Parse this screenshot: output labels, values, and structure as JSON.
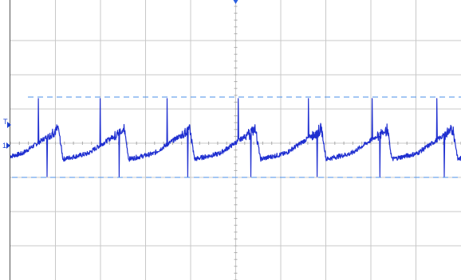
{
  "scope": {
    "channel_marker_label": "1",
    "trigger_level_label": "T",
    "grid": {
      "vertical_divisions": 10,
      "horizontal_divisions": 8
    },
    "colors": {
      "background": "#ffffff",
      "grid": "#c8c8c8",
      "trace": "#1f2fd0",
      "cursor": "#4a8fe8",
      "frame": "#555555"
    },
    "cursors": {
      "upper_level_div": 1.35,
      "lower_level_div": -1.0
    },
    "waveform": {
      "periods_on_screen": 6.85,
      "peak_positions": [
        0.054,
        0.217,
        0.372,
        0.515,
        0.665,
        0.807,
        0.953
      ],
      "spike_positions": [
        0.062,
        0.201,
        0.351,
        0.51,
        0.667,
        0.81,
        0.955
      ]
    }
  }
}
